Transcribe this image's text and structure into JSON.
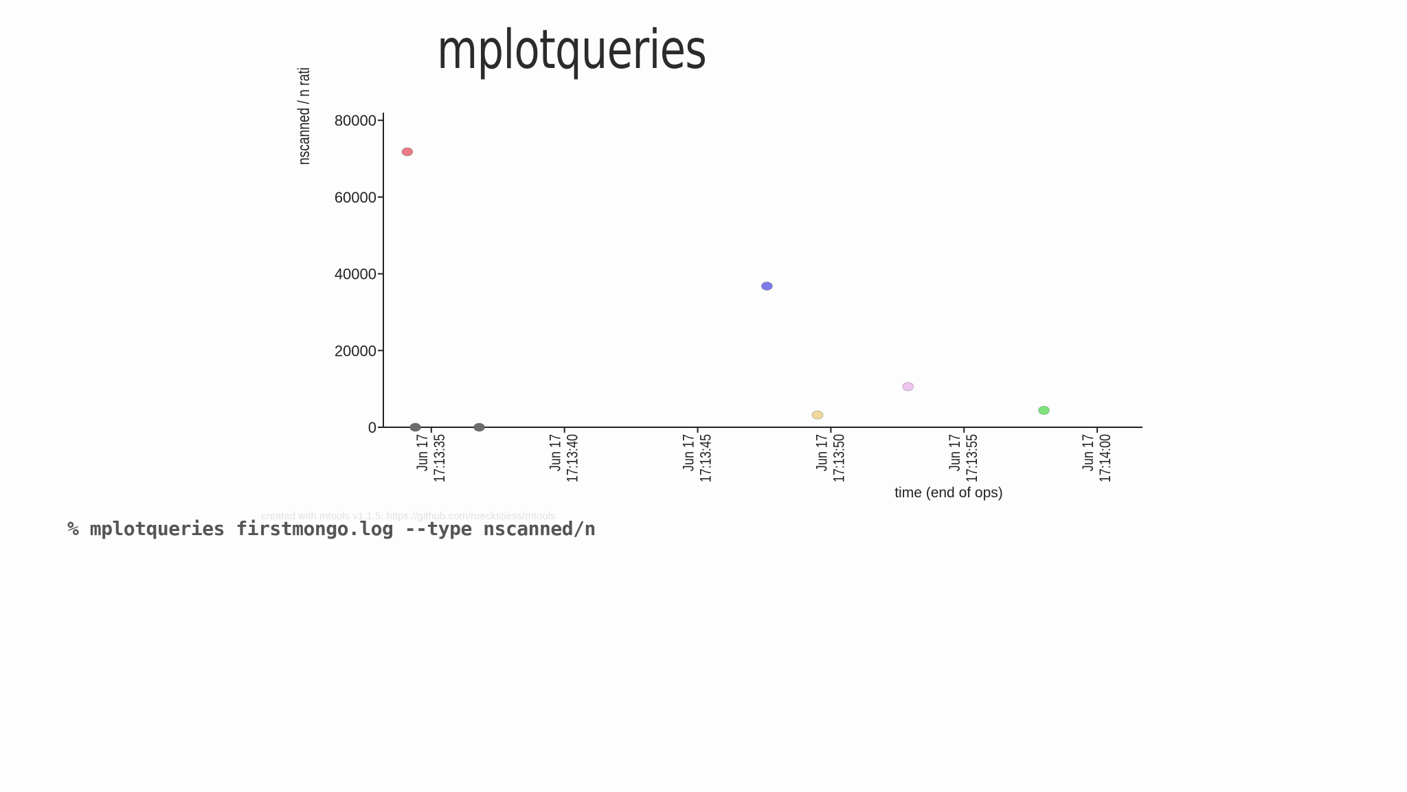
{
  "slide": {
    "title": "mplotqueries",
    "command": "% mplotqueries firstmongo.log --type nscanned/n",
    "watermark": "created with mtools v1.1.5: https://github.com/rueckstiess/mtools"
  },
  "chart_data": {
    "type": "scatter",
    "title": "",
    "xlabel": "time (end of ops)",
    "ylabel": "nscanned / n rati",
    "xlim": [
      "Jun 17 17:13:33.2",
      "Jun 17 17:14:01.7"
    ],
    "ylim": [
      0,
      82000
    ],
    "x_ticks": [
      {
        "value": "Jun 17 17:13:35",
        "line1": "Jun 17",
        "line2": "17:13:35"
      },
      {
        "value": "Jun 17 17:13:40",
        "line1": "Jun 17",
        "line2": "17:13:40"
      },
      {
        "value": "Jun 17 17:13:45",
        "line1": "Jun 17",
        "line2": "17:13:45"
      },
      {
        "value": "Jun 17 17:13:50",
        "line1": "Jun 17",
        "line2": "17:13:50"
      },
      {
        "value": "Jun 17 17:13:55",
        "line1": "Jun 17",
        "line2": "17:13:55"
      },
      {
        "value": "Jun 17 17:14:00",
        "line1": "Jun 17",
        "line2": "17:14:00"
      }
    ],
    "y_ticks": [
      0,
      20000,
      40000,
      60000,
      80000
    ],
    "grid": false,
    "legend": "none",
    "points": [
      {
        "x": "Jun 17 17:13:34.1",
        "y": 71800,
        "color": "#e87b84"
      },
      {
        "x": "Jun 17 17:13:34.4",
        "y": 0,
        "color": "#6c6c6c"
      },
      {
        "x": "Jun 17 17:13:36.8",
        "y": 0,
        "color": "#6c6c6c"
      },
      {
        "x": "Jun 17 17:13:47.6",
        "y": 36800,
        "color": "#7b7bea"
      },
      {
        "x": "Jun 17 17:13:49.5",
        "y": 3200,
        "color": "#f1d89a"
      },
      {
        "x": "Jun 17 17:13:52.9",
        "y": 10600,
        "color": "#efc6ef"
      },
      {
        "x": "Jun 17 17:13:58.0",
        "y": 4400,
        "color": "#7be37b"
      }
    ]
  }
}
